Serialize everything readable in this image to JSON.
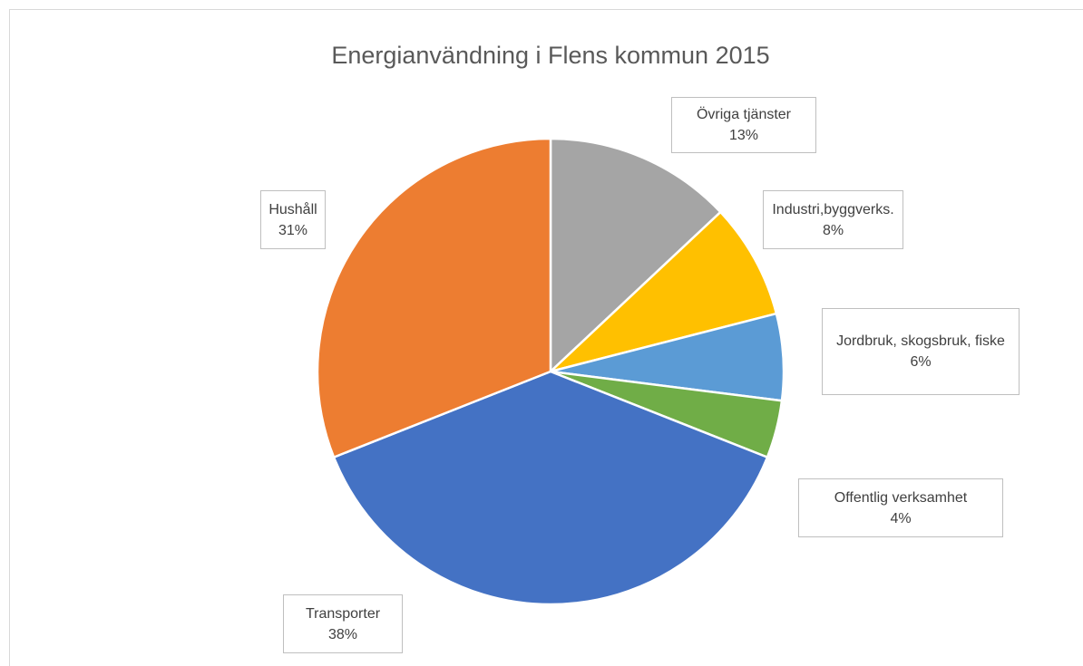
{
  "chart_data": {
    "type": "pie",
    "title": "Energianvändning i Flens kommun 2015",
    "categories": [
      "Övriga tjänster",
      "Industri,byggverks.",
      "Jordbruk, skogsbruk, fiske",
      "Offentlig verksamhet",
      "Transporter",
      "Hushåll"
    ],
    "values": [
      13,
      8,
      6,
      4,
      38,
      31
    ],
    "value_labels": [
      "13%",
      "8%",
      "6%",
      "4%",
      "38%",
      "31%"
    ],
    "colors": [
      "#a5a5a5",
      "#ffc000",
      "#5b9bd5",
      "#70ad47",
      "#4472c4",
      "#ed7d31"
    ]
  }
}
